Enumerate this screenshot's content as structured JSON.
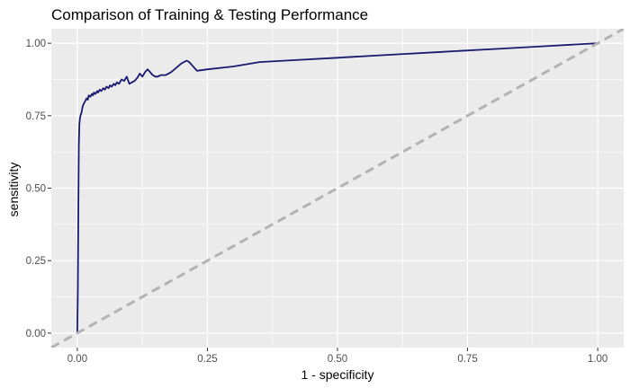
{
  "chart_data": {
    "type": "line",
    "title": "Comparison of Training & Testing Performance",
    "xlabel": "1 - specificity",
    "ylabel": "sensitivity",
    "xlim": [
      -0.05,
      1.05
    ],
    "ylim": [
      -0.05,
      1.05
    ],
    "x_ticks": [
      0.0,
      0.25,
      0.5,
      0.75,
      1.0
    ],
    "x_tick_labels": [
      "0.00",
      "0.25",
      "0.50",
      "0.75",
      "1.00"
    ],
    "y_ticks": [
      0.0,
      0.25,
      0.5,
      0.75,
      1.0
    ],
    "y_tick_labels": [
      "0.00",
      "0.25",
      "0.50",
      "0.75",
      "1.00"
    ],
    "grid": true,
    "legend": "none",
    "colors": {
      "panel": "#ebebeb",
      "grid": "#ffffff",
      "roc": "#191970",
      "reference": "#b3b3b3"
    },
    "series": [
      {
        "style": "solid",
        "x": [
          0.0,
          0.001,
          0.002,
          0.003,
          0.004,
          0.005,
          0.006,
          0.008,
          0.01,
          0.012,
          0.015,
          0.018,
          0.02,
          0.022,
          0.025,
          0.028,
          0.03,
          0.032,
          0.035,
          0.038,
          0.04,
          0.043,
          0.046,
          0.05,
          0.053,
          0.056,
          0.06,
          0.063,
          0.066,
          0.07,
          0.073,
          0.076,
          0.08,
          0.085,
          0.09,
          0.095,
          0.1,
          0.105,
          0.11,
          0.115,
          0.12,
          0.125,
          0.13,
          0.135,
          0.14,
          0.145,
          0.15,
          0.155,
          0.16,
          0.17,
          0.18,
          0.19,
          0.2,
          0.21,
          0.215,
          0.22,
          0.23,
          0.25,
          0.3,
          0.35,
          0.4,
          0.5,
          0.6,
          0.7,
          0.8,
          0.9,
          1.0
        ],
        "y": [
          0.0,
          0.15,
          0.45,
          0.65,
          0.72,
          0.74,
          0.75,
          0.76,
          0.78,
          0.79,
          0.8,
          0.81,
          0.805,
          0.82,
          0.815,
          0.825,
          0.82,
          0.83,
          0.825,
          0.835,
          0.83,
          0.84,
          0.835,
          0.845,
          0.84,
          0.85,
          0.845,
          0.855,
          0.85,
          0.86,
          0.855,
          0.865,
          0.86,
          0.875,
          0.87,
          0.885,
          0.86,
          0.865,
          0.87,
          0.88,
          0.895,
          0.885,
          0.9,
          0.91,
          0.9,
          0.89,
          0.885,
          0.885,
          0.89,
          0.89,
          0.9,
          0.915,
          0.93,
          0.94,
          0.935,
          0.925,
          0.905,
          0.91,
          0.92,
          0.935,
          0.94,
          0.95,
          0.96,
          0.97,
          0.98,
          0.99,
          1.0
        ]
      },
      {
        "style": "dashed",
        "x": [
          -0.05,
          1.05
        ],
        "y": [
          -0.05,
          1.05
        ]
      }
    ]
  }
}
